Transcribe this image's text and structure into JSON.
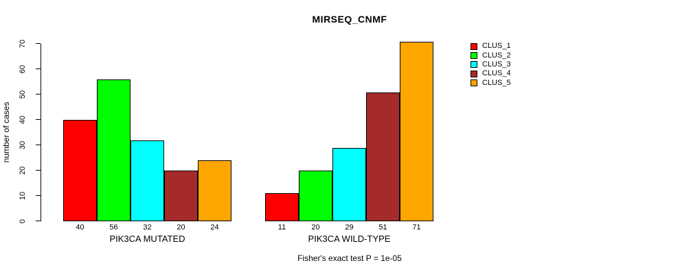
{
  "chart_data": {
    "type": "bar",
    "title": "MIRSEQ_CNMF",
    "ylabel": "number of cases",
    "ylim": [
      0,
      70
    ],
    "yticks": [
      0,
      10,
      20,
      30,
      40,
      50,
      60,
      70
    ],
    "grid": false,
    "legend_position": "top-right",
    "categories": [
      "PIK3CA MUTATED",
      "PIK3CA WILD-TYPE"
    ],
    "groups": [
      {
        "label": "PIK3CA MUTATED",
        "values": [
          40,
          56,
          32,
          20,
          24
        ]
      },
      {
        "label": "PIK3CA WILD-TYPE",
        "values": [
          11,
          20,
          29,
          51,
          71
        ]
      }
    ],
    "series": [
      {
        "name": "CLUS_1",
        "color": "#FF0000",
        "values": [
          40,
          11
        ]
      },
      {
        "name": "CLUS_2",
        "color": "#00FF00",
        "values": [
          56,
          20
        ]
      },
      {
        "name": "CLUS_3",
        "color": "#00FFFF",
        "values": [
          32,
          29
        ]
      },
      {
        "name": "CLUS_4",
        "color": "#A52A2A",
        "values": [
          20,
          51
        ]
      },
      {
        "name": "CLUS_5",
        "color": "#FFA500",
        "values": [
          24,
          71
        ]
      }
    ],
    "bar_value_labels_shown": true,
    "annotation": "Fisher's exact test P = 1e-05"
  }
}
